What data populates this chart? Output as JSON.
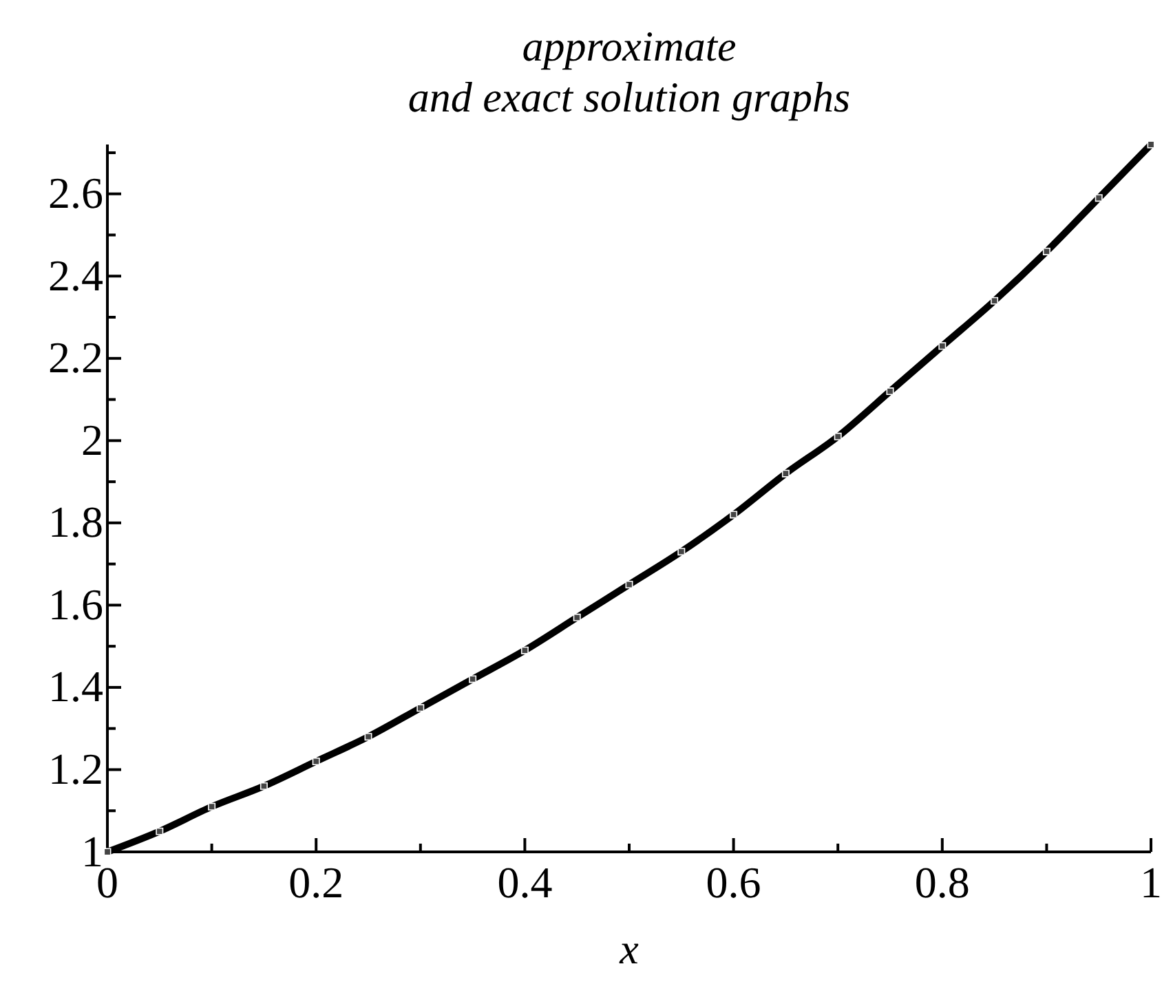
{
  "chart_data": {
    "type": "line",
    "title": "approximate\nand exact solution graphs",
    "xlabel": "x",
    "x": [
      0,
      0.05,
      0.1,
      0.15,
      0.2,
      0.25,
      0.3,
      0.35,
      0.4,
      0.45,
      0.5,
      0.55,
      0.6,
      0.65,
      0.7,
      0.75,
      0.8,
      0.85,
      0.9,
      0.95,
      1
    ],
    "series": [
      {
        "color": "#000000",
        "line_style": "solid",
        "values": [
          1.0,
          1.05,
          1.11,
          1.16,
          1.22,
          1.28,
          1.35,
          1.42,
          1.49,
          1.57,
          1.65,
          1.73,
          1.82,
          1.92,
          2.01,
          2.12,
          2.23,
          2.34,
          2.46,
          2.59,
          2.72
        ]
      },
      {
        "type": "scatter",
        "color": "#444444",
        "marker": "square",
        "values": [
          1.0,
          1.05,
          1.11,
          1.16,
          1.22,
          1.28,
          1.35,
          1.42,
          1.49,
          1.57,
          1.65,
          1.73,
          1.82,
          1.92,
          2.01,
          2.12,
          2.23,
          2.34,
          2.46,
          2.59,
          2.72
        ]
      }
    ],
    "xlim": [
      0,
      1
    ],
    "xticks": [
      0,
      {
        "value": 0.1,
        "label": null
      },
      0.2,
      {
        "value": 0.3,
        "label": null
      },
      0.4,
      {
        "value": 0.5,
        "label": null
      },
      0.6,
      {
        "value": 0.7,
        "label": null
      },
      0.8,
      {
        "value": 0.9,
        "label": null
      },
      1
    ],
    "ylim": [
      1,
      2.72
    ],
    "yticks": [
      1,
      {
        "value": 1.1,
        "label": null
      },
      1.2,
      {
        "value": 1.3,
        "label": null
      },
      1.4,
      {
        "value": 1.5,
        "label": null
      },
      1.6,
      {
        "value": 1.7,
        "label": null
      },
      1.8,
      {
        "value": 1.9,
        "label": null
      },
      2,
      {
        "value": 2.1,
        "label": null
      },
      2.2,
      {
        "value": 2.3,
        "label": null
      },
      2.4,
      {
        "value": 2.5,
        "label": null
      },
      2.6,
      {
        "value": 2.7,
        "label": null
      }
    ],
    "grid": false
  }
}
